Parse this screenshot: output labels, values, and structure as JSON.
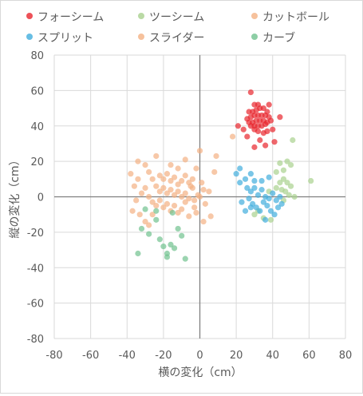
{
  "chart_data": {
    "type": "scatter",
    "xlabel": "横の変化（cm）",
    "ylabel": "縦の変化（cm）",
    "xlim": [
      -80,
      80
    ],
    "ylim": [
      -80,
      80
    ],
    "x_ticks": [
      -80,
      -60,
      -40,
      -20,
      0,
      20,
      40,
      60,
      80
    ],
    "y_ticks": [
      -80,
      -60,
      -40,
      -20,
      0,
      20,
      40,
      60,
      80
    ],
    "grid": true,
    "legend_position": "top",
    "series": [
      {
        "name": "フォーシーム",
        "color": "#e8262e",
        "points": [
          [
            28,
            59
          ],
          [
            30,
            52
          ],
          [
            32,
            52
          ],
          [
            27,
            48
          ],
          [
            29,
            48
          ],
          [
            31,
            49
          ],
          [
            33,
            50
          ],
          [
            35,
            50
          ],
          [
            37,
            48
          ],
          [
            38,
            52
          ],
          [
            26,
            44
          ],
          [
            28,
            45
          ],
          [
            30,
            46
          ],
          [
            32,
            46
          ],
          [
            34,
            46
          ],
          [
            36,
            46
          ],
          [
            38,
            45
          ],
          [
            44,
            45
          ],
          [
            27,
            42
          ],
          [
            29,
            42
          ],
          [
            31,
            43
          ],
          [
            33,
            43
          ],
          [
            35,
            43
          ],
          [
            37,
            42
          ],
          [
            39,
            43
          ],
          [
            28,
            40
          ],
          [
            30,
            40
          ],
          [
            32,
            40
          ],
          [
            34,
            40
          ],
          [
            36,
            41
          ],
          [
            21,
            40
          ],
          [
            24,
            38
          ],
          [
            30,
            38
          ],
          [
            32,
            37
          ],
          [
            35,
            36
          ],
          [
            37,
            37
          ],
          [
            40,
            38
          ],
          [
            33,
            32
          ],
          [
            30,
            28
          ],
          [
            36,
            29
          ],
          [
            41,
            31
          ],
          [
            26,
            34
          ]
        ]
      },
      {
        "name": "ツーシーム",
        "color": "#a9d18e",
        "points": [
          [
            51,
            32
          ],
          [
            48,
            20
          ],
          [
            50,
            18
          ],
          [
            44,
            19
          ],
          [
            46,
            15
          ],
          [
            42,
            14
          ],
          [
            46,
            10
          ],
          [
            48,
            8
          ],
          [
            50,
            6
          ],
          [
            44,
            8
          ],
          [
            47,
            3
          ],
          [
            49,
            1
          ],
          [
            45,
            4
          ],
          [
            52,
            0
          ],
          [
            42,
            5
          ],
          [
            61,
            9
          ],
          [
            46,
            -2
          ],
          [
            38,
            3
          ],
          [
            32,
            -8
          ],
          [
            35,
            -12
          ],
          [
            30,
            -10
          ],
          [
            39,
            -13
          ]
        ]
      },
      {
        "name": "カットボール",
        "color": "#f4b183",
        "points": [
          [
            0,
            26
          ],
          [
            9,
            23
          ],
          [
            8,
            14
          ],
          [
            18,
            34
          ],
          [
            6,
            -11
          ],
          [
            2,
            -14
          ],
          [
            -3,
            -6
          ],
          [
            -2,
            16
          ],
          [
            -4,
            10
          ],
          [
            1,
            8
          ],
          [
            2,
            4
          ],
          [
            -1,
            1
          ],
          [
            -3,
            -2
          ],
          [
            3,
            -4
          ],
          [
            5,
            3
          ],
          [
            -5,
            6
          ],
          [
            0,
            0
          ],
          [
            -2,
            -9
          ]
        ]
      },
      {
        "name": "スプリット",
        "color": "#41aedd",
        "points": [
          [
            20,
            13
          ],
          [
            22,
            16
          ],
          [
            22,
            8
          ],
          [
            28,
            13
          ],
          [
            25,
            10
          ],
          [
            26,
            5
          ],
          [
            28,
            3
          ],
          [
            30,
            5
          ],
          [
            32,
            1
          ],
          [
            34,
            4
          ],
          [
            36,
            0
          ],
          [
            38,
            -1
          ],
          [
            40,
            2
          ],
          [
            42,
            -2
          ],
          [
            44,
            0
          ],
          [
            27,
            -1
          ],
          [
            29,
            -4
          ],
          [
            31,
            -6
          ],
          [
            33,
            -8
          ],
          [
            35,
            -3
          ],
          [
            37,
            -5
          ],
          [
            39,
            -8
          ],
          [
            41,
            -10
          ],
          [
            43,
            -6
          ],
          [
            25,
            -8
          ],
          [
            23,
            -3
          ],
          [
            30,
            9
          ],
          [
            34,
            9
          ],
          [
            38,
            11
          ],
          [
            45,
            -4
          ],
          [
            36,
            -13
          ],
          [
            28,
            -6
          ]
        ]
      },
      {
        "name": "スライダー",
        "color": "#f4b183",
        "points": [
          [
            -30,
            18
          ],
          [
            -34,
            20
          ],
          [
            -24,
            23
          ],
          [
            -28,
            14
          ],
          [
            -26,
            10
          ],
          [
            -22,
            12
          ],
          [
            -20,
            10
          ],
          [
            -18,
            13
          ],
          [
            -16,
            9
          ],
          [
            -14,
            11
          ],
          [
            -12,
            7
          ],
          [
            -10,
            9
          ],
          [
            -8,
            12
          ],
          [
            -6,
            8
          ],
          [
            -4,
            5
          ],
          [
            -24,
            6
          ],
          [
            -22,
            3
          ],
          [
            -20,
            5
          ],
          [
            -18,
            2
          ],
          [
            -16,
            4
          ],
          [
            -14,
            1
          ],
          [
            -12,
            3
          ],
          [
            -10,
            0
          ],
          [
            -8,
            2
          ],
          [
            -6,
            -1
          ],
          [
            -30,
            5
          ],
          [
            -32,
            2
          ],
          [
            -28,
            0
          ],
          [
            -26,
            -3
          ],
          [
            -24,
            -5
          ],
          [
            -22,
            -2
          ],
          [
            -20,
            -6
          ],
          [
            -18,
            -4
          ],
          [
            -16,
            -8
          ],
          [
            -14,
            -5
          ],
          [
            -12,
            -9
          ],
          [
            -10,
            -7
          ],
          [
            -8,
            -3
          ],
          [
            -6,
            -11
          ],
          [
            -35,
            -2
          ],
          [
            -37,
            -8
          ],
          [
            -33,
            -10
          ],
          [
            -30,
            -14
          ],
          [
            -28,
            -16
          ],
          [
            -36,
            6
          ],
          [
            -38,
            13
          ],
          [
            -34,
            10
          ],
          [
            -16,
            18
          ],
          [
            -12,
            16
          ],
          [
            -8,
            21
          ],
          [
            -26,
            -10
          ]
        ]
      },
      {
        "name": "カーブ",
        "color": "#70c28e",
        "points": [
          [
            -30,
            -7
          ],
          [
            -32,
            -18
          ],
          [
            -28,
            -21
          ],
          [
            -24,
            -13
          ],
          [
            -22,
            -24
          ],
          [
            -20,
            -28
          ],
          [
            -18,
            -32
          ],
          [
            -16,
            -27
          ],
          [
            -14,
            -29
          ],
          [
            -12,
            -18
          ],
          [
            -34,
            -32
          ],
          [
            -18,
            -34
          ],
          [
            -8,
            -35
          ],
          [
            -10,
            -22
          ],
          [
            -24,
            -8
          ],
          [
            -15,
            -9
          ]
        ]
      }
    ]
  }
}
